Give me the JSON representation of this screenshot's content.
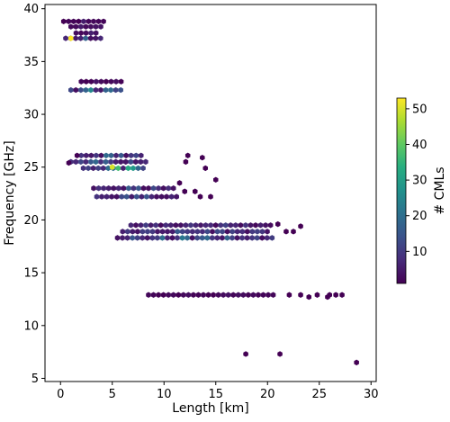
{
  "chart_data": {
    "type": "heatmap",
    "subtype": "hexbin",
    "xlabel": "Length [km]",
    "ylabel": "Frequency [GHz]",
    "xlim": [
      -1.5,
      30.5
    ],
    "ylim": [
      4.7,
      40.4
    ],
    "xticks": [
      0,
      5,
      10,
      15,
      20,
      25,
      30
    ],
    "yticks": [
      5,
      10,
      15,
      20,
      25,
      30,
      35,
      40
    ],
    "grid": false,
    "colormap": "viridis",
    "colorbar": {
      "label": "# CMLs",
      "range": [
        1,
        53
      ],
      "ticks": [
        10,
        20,
        30,
        40,
        50
      ],
      "placement": "right"
    },
    "bands": [
      {
        "y": 38.8,
        "x": [
          0.3,
          4.0
        ],
        "level": [
          1,
          6
        ]
      },
      {
        "y": 38.3,
        "x": [
          1.0,
          3.8
        ],
        "level": [
          2,
          8
        ]
      },
      {
        "y": 37.7,
        "x": [
          1.5,
          3.2
        ],
        "level": [
          2,
          10
        ]
      },
      {
        "y": 37.2,
        "x": [
          0.5,
          3.8
        ],
        "level": [
          3,
          25
        ]
      },
      {
        "y": 33.1,
        "x": [
          2.0,
          5.8
        ],
        "level": [
          1,
          5
        ]
      },
      {
        "y": 32.3,
        "x": [
          1.0,
          6.0
        ],
        "level": [
          3,
          30
        ]
      },
      {
        "y": 26.1,
        "x": [
          2.0,
          8.0
        ],
        "level": [
          3,
          22
        ]
      },
      {
        "y": 25.5,
        "x": [
          1.0,
          8.0
        ],
        "level": [
          4,
          22
        ]
      },
      {
        "y": 24.9,
        "x": [
          2.2,
          8.0
        ],
        "level": [
          5,
          45
        ]
      },
      {
        "y": 23.0,
        "x": [
          3.2,
          11.0
        ],
        "level": [
          2,
          18
        ]
      },
      {
        "y": 22.2,
        "x": [
          3.5,
          11.0
        ],
        "level": [
          3,
          20
        ]
      },
      {
        "y": 19.5,
        "x": [
          6.8,
          20.3
        ],
        "level": [
          2,
          18
        ]
      },
      {
        "y": 18.9,
        "x": [
          6.0,
          20.0
        ],
        "level": [
          3,
          20
        ]
      },
      {
        "y": 18.3,
        "x": [
          5.5,
          20.3
        ],
        "level": [
          3,
          25
        ]
      },
      {
        "y": 12.9,
        "x": [
          8.5,
          20.5
        ],
        "level": [
          1,
          4
        ]
      }
    ],
    "points": [
      {
        "x": 1.0,
        "y": 37.2,
        "value": 53
      },
      {
        "x": 5.0,
        "y": 25.0,
        "value": 50
      },
      {
        "x": 0.8,
        "y": 25.4,
        "value": 1
      },
      {
        "x": 1.6,
        "y": 26.1,
        "value": 1
      },
      {
        "x": 12.3,
        "y": 26.1,
        "value": 1
      },
      {
        "x": 13.7,
        "y": 25.9,
        "value": 1
      },
      {
        "x": 12.1,
        "y": 25.5,
        "value": 1
      },
      {
        "x": 14.0,
        "y": 24.9,
        "value": 1
      },
      {
        "x": 11.5,
        "y": 23.5,
        "value": 1
      },
      {
        "x": 15.0,
        "y": 23.8,
        "value": 1
      },
      {
        "x": 12.0,
        "y": 22.7,
        "value": 1
      },
      {
        "x": 13.0,
        "y": 22.7,
        "value": 1
      },
      {
        "x": 13.5,
        "y": 22.2,
        "value": 1
      },
      {
        "x": 14.5,
        "y": 22.2,
        "value": 1
      },
      {
        "x": 23.2,
        "y": 19.4,
        "value": 1
      },
      {
        "x": 22.5,
        "y": 18.9,
        "value": 1
      },
      {
        "x": 21.8,
        "y": 18.9,
        "value": 1
      },
      {
        "x": 21.0,
        "y": 19.6,
        "value": 1
      },
      {
        "x": 22.1,
        "y": 12.9,
        "value": 1
      },
      {
        "x": 23.2,
        "y": 12.9,
        "value": 1
      },
      {
        "x": 24.0,
        "y": 12.7,
        "value": 1
      },
      {
        "x": 24.8,
        "y": 12.9,
        "value": 1
      },
      {
        "x": 25.8,
        "y": 12.7,
        "value": 1
      },
      {
        "x": 26.0,
        "y": 12.9,
        "value": 1
      },
      {
        "x": 26.6,
        "y": 12.9,
        "value": 1
      },
      {
        "x": 27.2,
        "y": 12.9,
        "value": 1
      },
      {
        "x": 17.9,
        "y": 7.3,
        "value": 1
      },
      {
        "x": 21.2,
        "y": 7.3,
        "value": 1
      },
      {
        "x": 28.6,
        "y": 6.5,
        "value": 1
      }
    ]
  }
}
